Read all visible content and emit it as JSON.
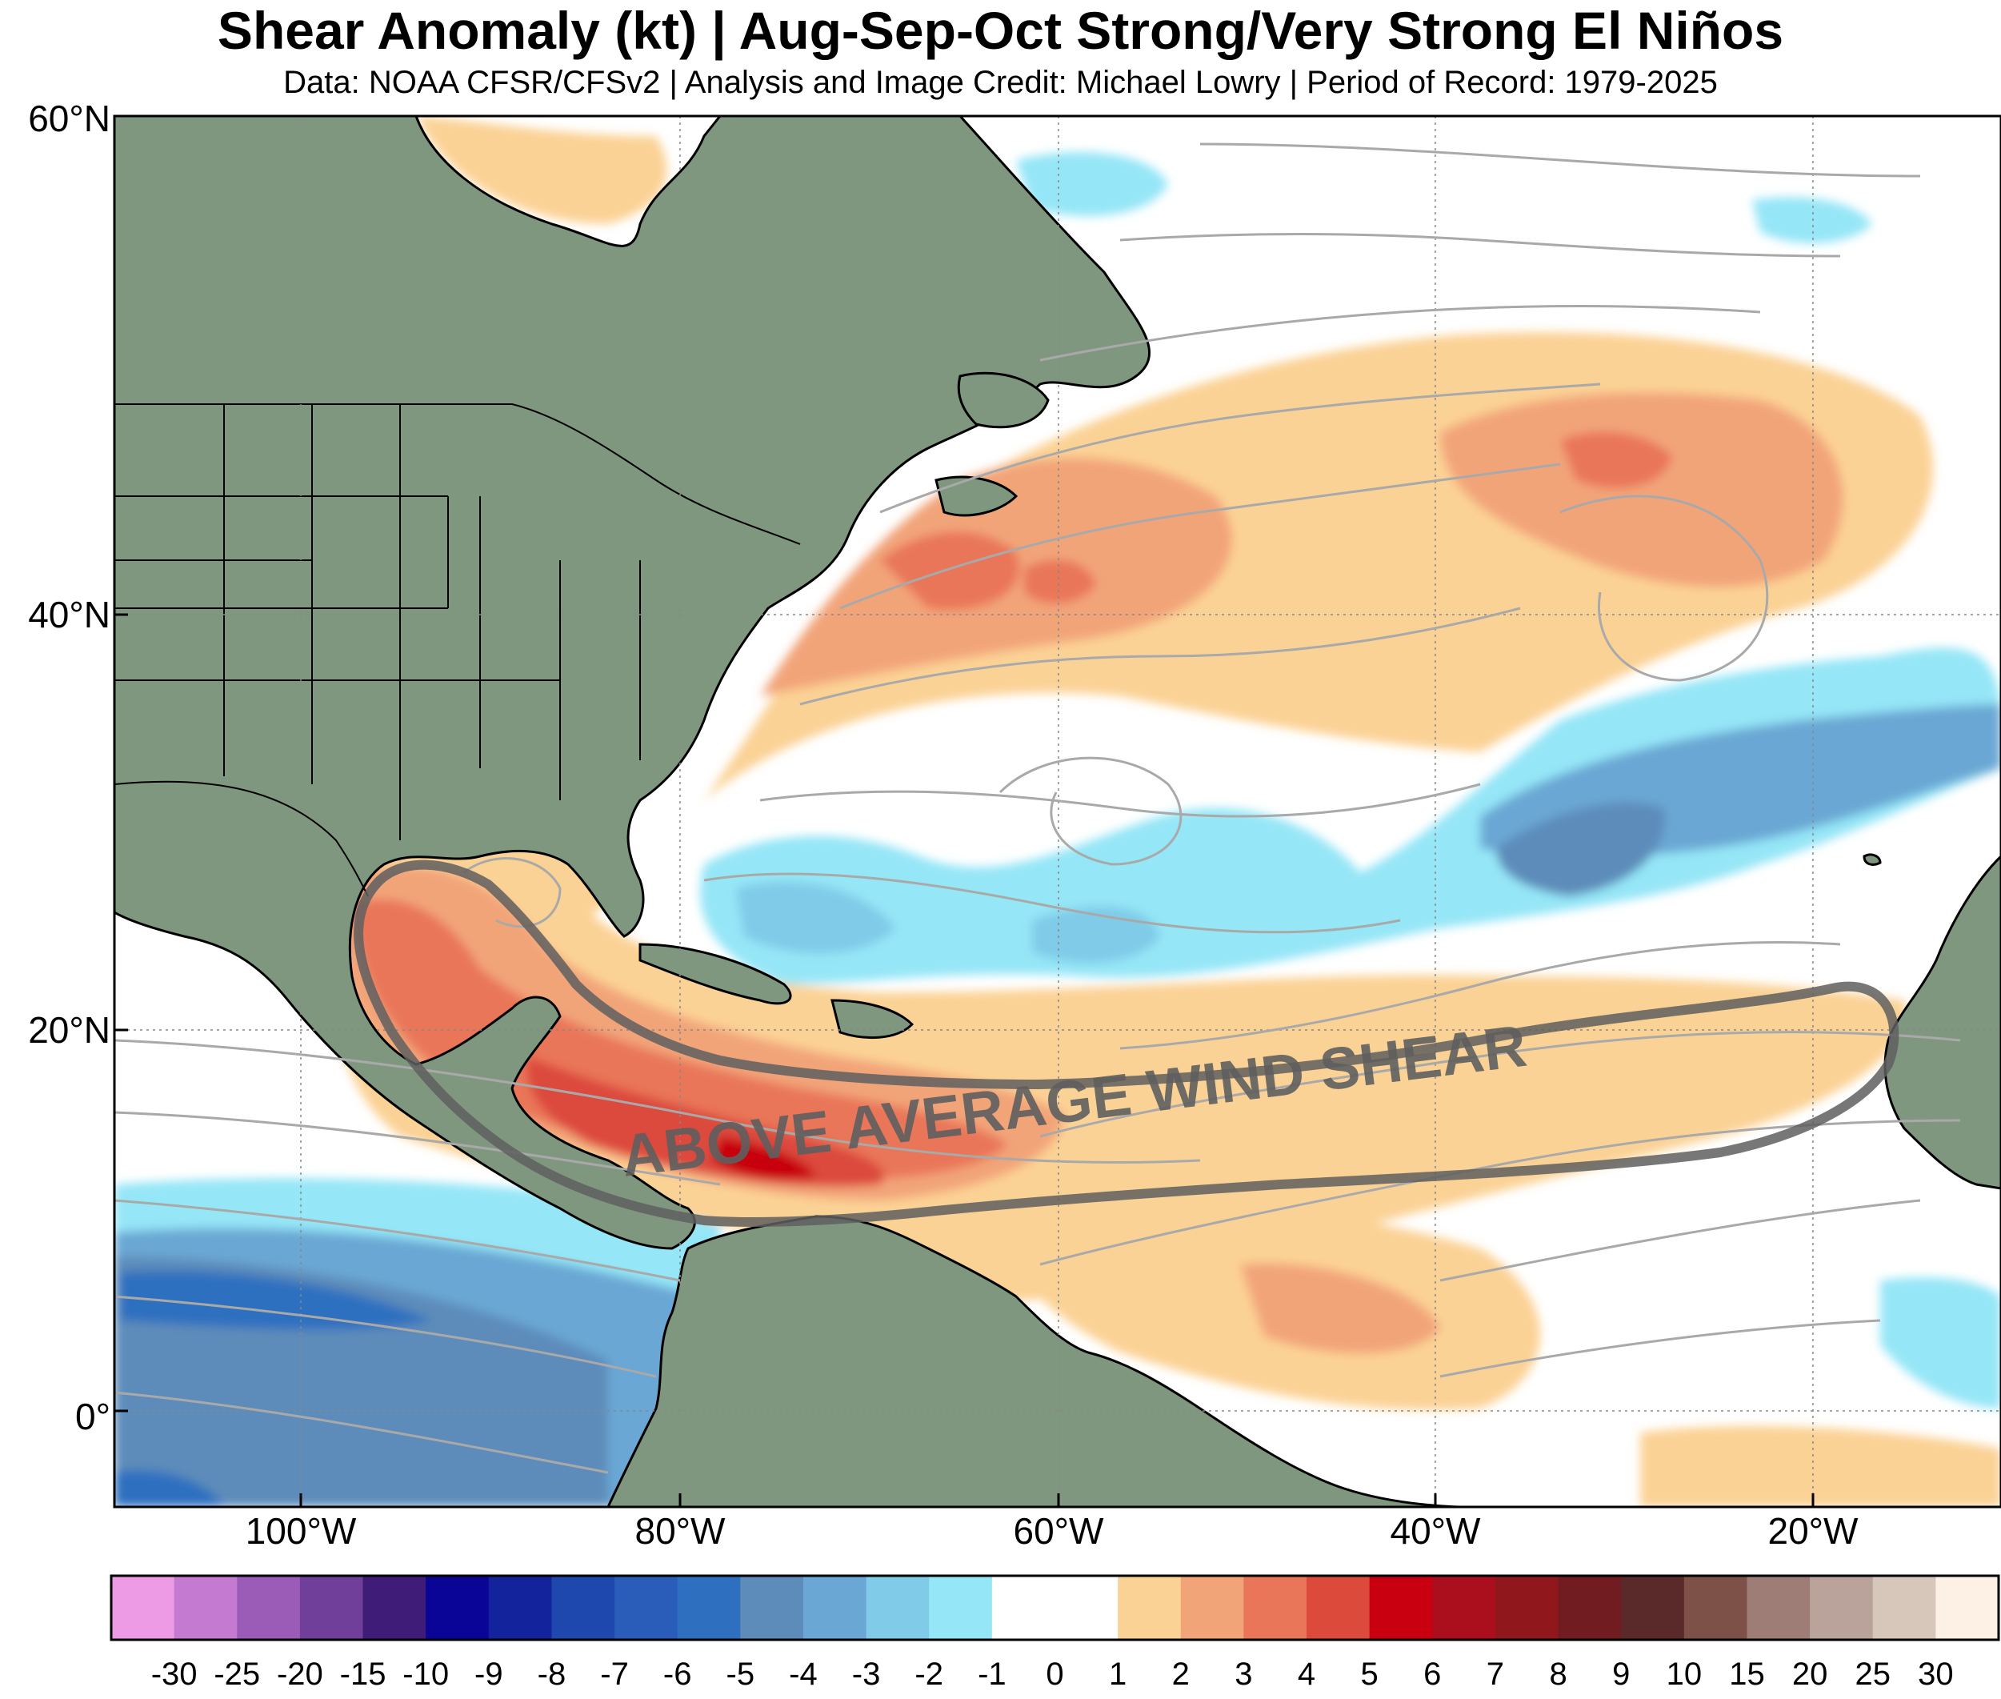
{
  "title": "Shear Anomaly (kt) | Aug-Sep-Oct Strong/Very Strong El Niños",
  "subtitle": "Data: NOAA CFSR/CFSv2 | Analysis and Image Credit: Michael Lowry | Period of Record: 1979-2025",
  "annotation": "ABOVE AVERAGE WIND SHEAR",
  "latitude_labels": [
    "60°N",
    "40°N",
    "20°N",
    "0°"
  ],
  "longitude_labels": [
    "100°W",
    "80°W",
    "60°W",
    "40°W",
    "20°W"
  ],
  "colorbar": {
    "labels": [
      "-30",
      "-25",
      "-20",
      "-15",
      "-10",
      "-9",
      "-8",
      "-7",
      "-6",
      "-5",
      "-4",
      "-3",
      "-2",
      "-1",
      "0",
      "1",
      "2",
      "3",
      "4",
      "5",
      "6",
      "7",
      "8",
      "9",
      "10",
      "15",
      "20",
      "25",
      "30"
    ],
    "colors": [
      "#ee9be6",
      "#c47ad0",
      "#9a5cb6",
      "#6f3f99",
      "#3f1c78",
      "#0b0597",
      "#13239b",
      "#1e48ad",
      "#2a5cba",
      "#2f6fc0",
      "#5d8cba",
      "#6aa7d4",
      "#7fcbe8",
      "#95e6f7",
      "#ffffff",
      "#ffffff",
      "#fbd295",
      "#f2a479",
      "#e97659",
      "#dc4a3c",
      "#c8000f",
      "#ab0f1d",
      "#90181c",
      "#701c20",
      "#5a2a2a",
      "#7d5048",
      "#9d7d75",
      "#b9a39a",
      "#d7c7bb",
      "#fdf0e4"
    ]
  },
  "colors": {
    "land": "#80977f",
    "ocean_neutral": "#ffffff",
    "streamlines": "#a9a9a9",
    "annotation_outline": "#5f5f5f"
  }
}
